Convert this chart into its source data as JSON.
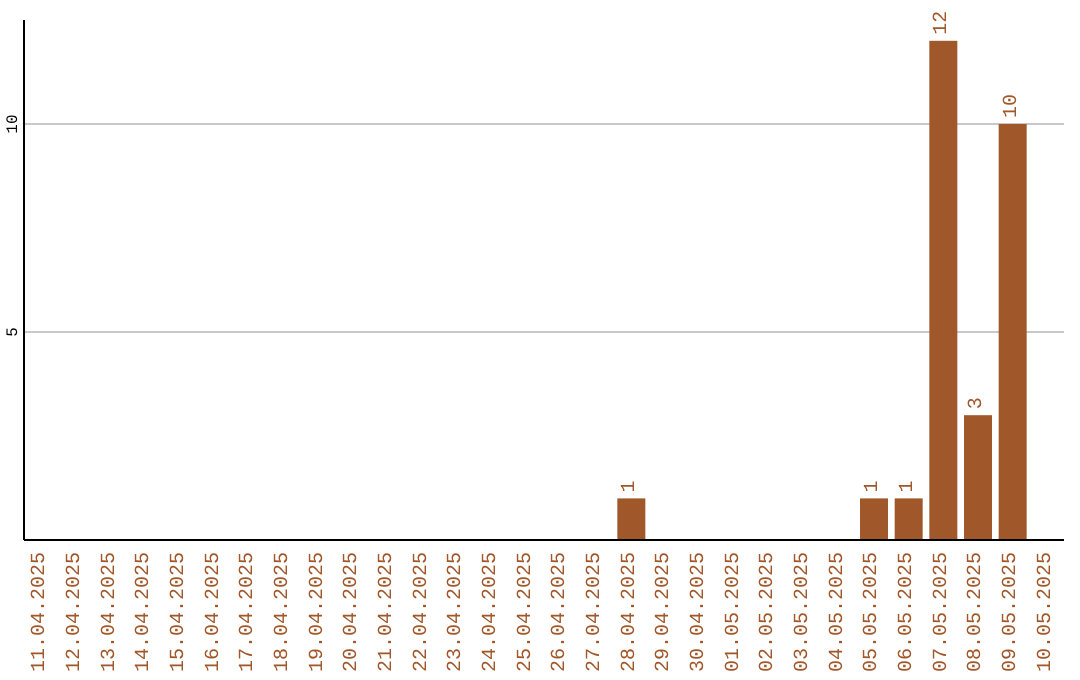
{
  "chart_data": {
    "type": "bar",
    "categories": [
      "11.04.2025",
      "12.04.2025",
      "13.04.2025",
      "14.04.2025",
      "15.04.2025",
      "16.04.2025",
      "17.04.2025",
      "18.04.2025",
      "19.04.2025",
      "20.04.2025",
      "21.04.2025",
      "22.04.2025",
      "23.04.2025",
      "24.04.2025",
      "25.04.2025",
      "26.04.2025",
      "27.04.2025",
      "28.04.2025",
      "29.04.2025",
      "30.04.2025",
      "01.05.2025",
      "02.05.2025",
      "03.05.2025",
      "04.05.2025",
      "05.05.2025",
      "06.05.2025",
      "07.05.2025",
      "08.05.2025",
      "09.05.2025",
      "10.05.2025"
    ],
    "values": [
      0,
      0,
      0,
      0,
      0,
      0,
      0,
      0,
      0,
      0,
      0,
      0,
      0,
      0,
      0,
      0,
      0,
      1,
      0,
      0,
      0,
      0,
      0,
      0,
      1,
      1,
      12,
      3,
      10,
      0
    ],
    "value_labels": [
      null,
      null,
      null,
      null,
      null,
      null,
      null,
      null,
      null,
      null,
      null,
      null,
      null,
      null,
      null,
      null,
      null,
      "1",
      null,
      null,
      null,
      null,
      null,
      null,
      "1",
      "1",
      "12",
      "3",
      "10",
      null
    ],
    "color": "#a0572a",
    "ylim": [
      0,
      12.5
    ],
    "yticks": [
      5,
      10
    ],
    "grid": "y"
  }
}
